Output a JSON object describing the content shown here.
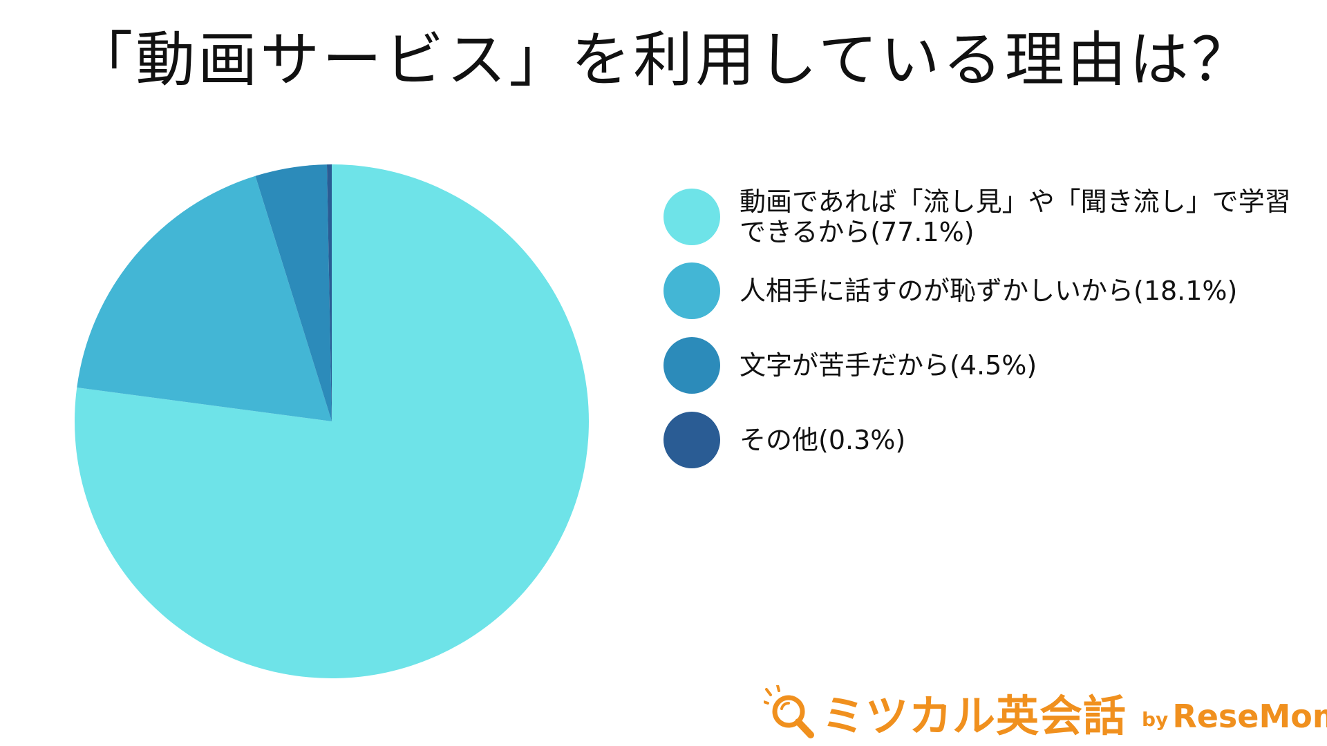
{
  "chart_data": {
    "type": "pie",
    "title": "「動画サービス」を利用している理由は？",
    "labels": [
      "動画であれば「流し見」や「聞き流し」で学習できるから(77.1%)",
      "人相手に話すのが恥ずかしいから(18.1%)",
      "文字が苦手だから(4.5%)",
      "その他(0.3%)"
    ],
    "values": [
      77.1,
      18.1,
      4.5,
      0.3
    ],
    "colors": [
      "#6ee3e8",
      "#43b6d5",
      "#2c8bba",
      "#2a5c94"
    ],
    "legend": "right"
  },
  "logo": {
    "main": "ミツカル英会話",
    "by": "by",
    "brand": "ReseMom",
    "color": "#f0901e",
    "icon": "magnifier-icon"
  }
}
